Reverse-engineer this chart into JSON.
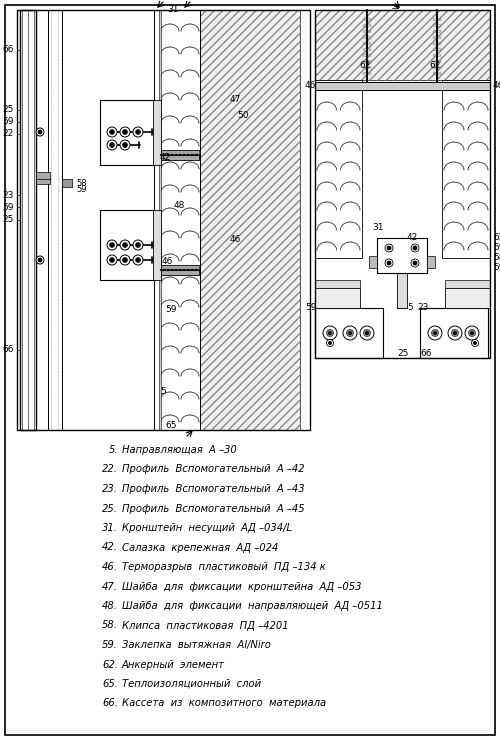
{
  "background_color": "#ffffff",
  "legend_items": [
    {
      "num": "5.",
      "text": "Направляющая  А –30"
    },
    {
      "num": "22.",
      "text": "Профиль  Вспомогательный  А –42"
    },
    {
      "num": "23.",
      "text": "Профиль  Вспомогательный  А –43"
    },
    {
      "num": "25.",
      "text": "Профиль  Вспомогательный  А –45"
    },
    {
      "num": "31.",
      "text": "Кронштейн  несущий  АД –034/L"
    },
    {
      "num": "42.",
      "text": "Салазка  крепежная  АД –024"
    },
    {
      "num": "46.",
      "text": "Терморазрыв  пластиковый  ПД –134 к"
    },
    {
      "num": "47.",
      "text": "Шайба  для  фиксации  кронштейна  АД –053"
    },
    {
      "num": "48.",
      "text": "Шайба  для  фиксации  направляющей  АД –0511"
    },
    {
      "num": "58.",
      "text": "Клипса  пластиковая  ПД –4201"
    },
    {
      "num": "59.",
      "text": "Заклепка  вытяжная  Al/Niro"
    },
    {
      "num": "62.",
      "text": "Анкерный  элемент"
    },
    {
      "num": "65.",
      "text": "Теплоизоляционный  слой"
    },
    {
      "num": "66.",
      "text": "Кассета  из  композитного  материала"
    }
  ],
  "fig_width": 5.0,
  "fig_height": 7.4,
  "dpi": 100
}
